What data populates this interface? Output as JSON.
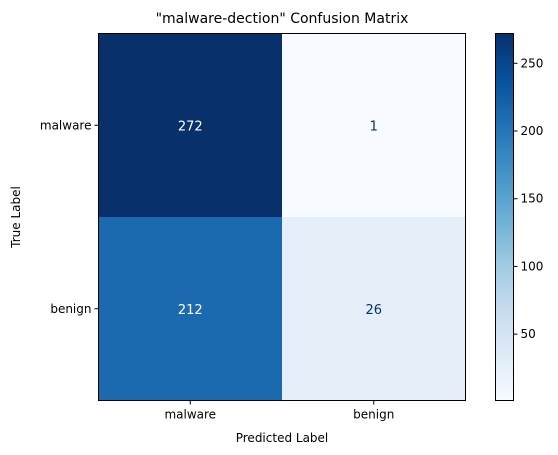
{
  "chart_data": {
    "type": "heatmap",
    "title": "\"malware-dection\" Confusion Matrix",
    "xlabel": "Predicted Label",
    "ylabel": "True Label",
    "x_categories": [
      "malware",
      "benign"
    ],
    "y_categories": [
      "malware",
      "benign"
    ],
    "values": [
      [
        272,
        1
      ],
      [
        212,
        26
      ]
    ],
    "colormap": "Blues",
    "vmin": 1,
    "vmax": 272,
    "colorbar_ticks": [
      50,
      100,
      150,
      200,
      250
    ],
    "colorbar_tick_labels": [
      "50",
      "100",
      "150",
      "200",
      "250"
    ],
    "grid": false
  }
}
